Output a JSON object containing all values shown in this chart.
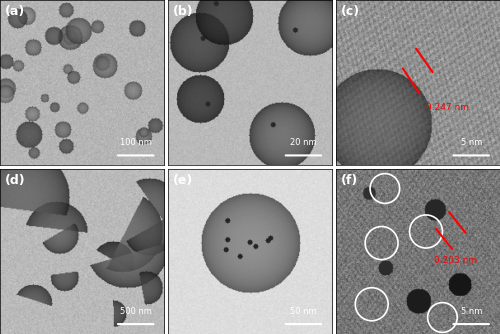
{
  "figure_size": [
    5.0,
    3.34
  ],
  "dpi": 100,
  "nrows": 2,
  "ncols": 3,
  "labels": [
    "(a)",
    "(b)",
    "(c)",
    "(d)",
    "(e)",
    "(f)"
  ],
  "scale_bars": [
    "100 nm",
    "20 nm",
    "5 nm",
    "500 nm",
    "50 nm",
    "5 nm"
  ],
  "annotation_c": "0.247 nm",
  "annotation_f": "0.203 nm",
  "bg_color_top": [
    "#b0b0b0",
    "#909090",
    "#808080"
  ],
  "bg_color_bot": [
    "#909090",
    "#a0a0a0",
    "#707070"
  ],
  "label_color": "white",
  "scalebar_color": "white",
  "annotation_color": "red",
  "circle_color": "white",
  "hspace": 0.02,
  "wspace": 0.02,
  "seed": 42
}
